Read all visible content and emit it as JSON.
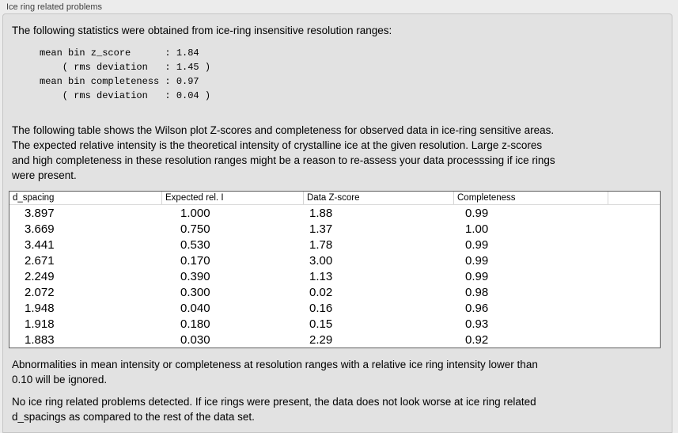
{
  "panel": {
    "title": "Ice ring related problems"
  },
  "intro": "The following statistics were obtained from ice-ring insensitive resolution ranges:",
  "stats_block": "mean bin z_score      : 1.84\n    ( rms deviation   : 1.45 )\nmean bin completeness : 0.97\n    ( rms deviation   : 0.04 )",
  "description": "The following table shows the Wilson plot Z-scores and completeness for observed data in ice-ring sensitive areas.\nThe expected relative intensity is the theoretical intensity of crystalline ice at the given resolution. Large z-scores\nand high completeness in these resolution ranges might be a reason to re-assess your data processsing if ice rings\nwere present.",
  "table": {
    "columns": [
      "d_spacing",
      "Expected rel. I",
      "Data Z-score",
      "Completeness"
    ],
    "rows": [
      [
        "3.897",
        "1.000",
        "1.88",
        "0.99"
      ],
      [
        "3.669",
        "0.750",
        "1.37",
        "1.00"
      ],
      [
        "3.441",
        "0.530",
        "1.78",
        "0.99"
      ],
      [
        "2.671",
        "0.170",
        "3.00",
        "0.99"
      ],
      [
        "2.249",
        "0.390",
        "1.13",
        "0.99"
      ],
      [
        "2.072",
        "0.300",
        "0.02",
        "0.98"
      ],
      [
        "1.948",
        "0.040",
        "0.16",
        "0.96"
      ],
      [
        "1.918",
        "0.180",
        "0.15",
        "0.93"
      ],
      [
        "1.883",
        "0.030",
        "2.29",
        "0.92"
      ]
    ]
  },
  "note_ignore": "Abnormalities in mean intensity or completeness at resolution ranges with a relative ice ring intensity lower than\n0.10 will be ignored.",
  "conclusion": "No ice ring related problems detected. If ice rings were present, the data does not look worse at ice ring related\nd_spacings as compared to the rest of the data set.",
  "colors": {
    "page_bg": "#ececec",
    "panel_bg": "#e2e2e2",
    "panel_border": "#c5c5c5",
    "table_bg": "#ffffff",
    "table_border": "#5f5f5f",
    "header_separator": "#d4d4d4",
    "title_text": "#3f3f3f",
    "body_text": "#000000"
  }
}
